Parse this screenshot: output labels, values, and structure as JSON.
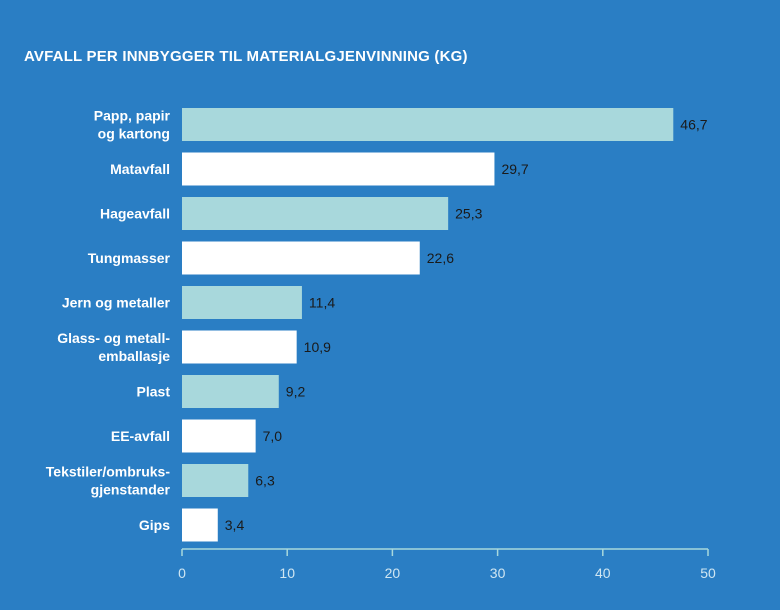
{
  "chart_data": {
    "type": "bar",
    "orientation": "horizontal",
    "title": "AVFALL PER INNBYGGER TIL MATERIALGJENVINNING (KG)",
    "xlabel": "",
    "ylabel": "",
    "xlim": [
      0,
      50
    ],
    "xticks": [
      0,
      10,
      20,
      30,
      40,
      50
    ],
    "grid": false,
    "categories": [
      [
        "Papp, papir",
        "og kartong"
      ],
      [
        "Matavfall"
      ],
      [
        "Hageavfall"
      ],
      [
        "Tungmasser"
      ],
      [
        "Jern og metaller"
      ],
      [
        "Glass- og metall-",
        "emballasje"
      ],
      [
        "Plast"
      ],
      [
        "EE-avfall"
      ],
      [
        "Tekstiler/ombruks-",
        "gjenstander"
      ],
      [
        "Gips"
      ]
    ],
    "values": [
      46.7,
      29.7,
      25.3,
      22.6,
      11.4,
      10.9,
      9.2,
      7.0,
      6.3,
      3.4
    ],
    "value_labels": [
      "46,7",
      "29,7",
      "25,3",
      "22,6",
      "11,4",
      "10,9",
      "9,2",
      "7,0",
      "6,3",
      "3,4"
    ],
    "bar_colors": [
      "#a8d8dc",
      "#ffffff"
    ],
    "colors": {
      "background": "#2a7ec4",
      "axis": "#a8d8dc",
      "tick_text": "#cfe6f2"
    }
  }
}
